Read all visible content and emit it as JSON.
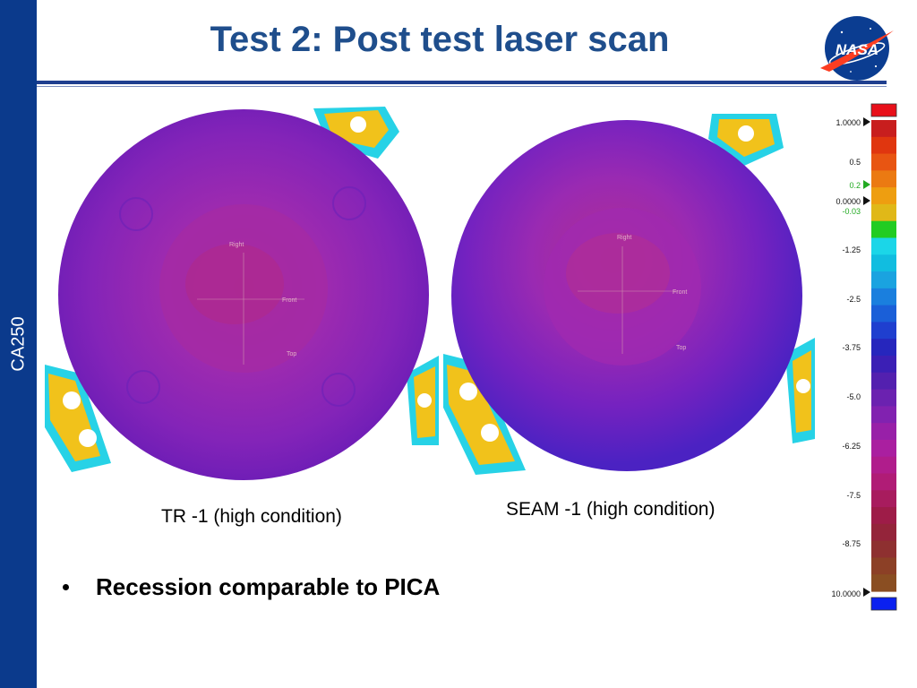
{
  "slide": {
    "title": "Test 2: Post test laser scan",
    "sidebar_label": "CA250",
    "logo_text": "NASA"
  },
  "scans": [
    {
      "caption": "TR -1 (high condition)",
      "labels": {
        "right": "Right",
        "front": "Front",
        "top": "Top"
      }
    },
    {
      "caption": "SEAM -1 (high condition)",
      "labels": {
        "right": "Right",
        "front": "Front",
        "top": "Top"
      }
    }
  ],
  "bullets": [
    "Recession comparable to PICA"
  ],
  "color_scale": {
    "labels": [
      "1.0000",
      "0.5",
      "0.2",
      "0.0000",
      "-0.03",
      "-1.25",
      "-2.5",
      "-3.75",
      "-5.0",
      "-6.25",
      "-7.5",
      "-8.75",
      "10.0000"
    ],
    "colors": [
      "#c81e1e",
      "#e0360f",
      "#e85512",
      "#eb7a12",
      "#ee9e10",
      "#e0b818",
      "#22cc22",
      "#1bd6e8",
      "#11bde0",
      "#1aa3e0",
      "#1a7fde",
      "#1a5fd8",
      "#1f3fcf",
      "#2626bd",
      "#3b1fb5",
      "#5320af",
      "#6b22b0",
      "#8122b0",
      "#9820a8",
      "#aa1fa0",
      "#b01d8c",
      "#b01c76",
      "#a81c5e",
      "#9e1c48",
      "#94243a",
      "#8e3030",
      "#8c4026",
      "#8a4e22"
    ],
    "top_swatch": "#e8101a",
    "bottom_swatch": "#0a20f0"
  }
}
